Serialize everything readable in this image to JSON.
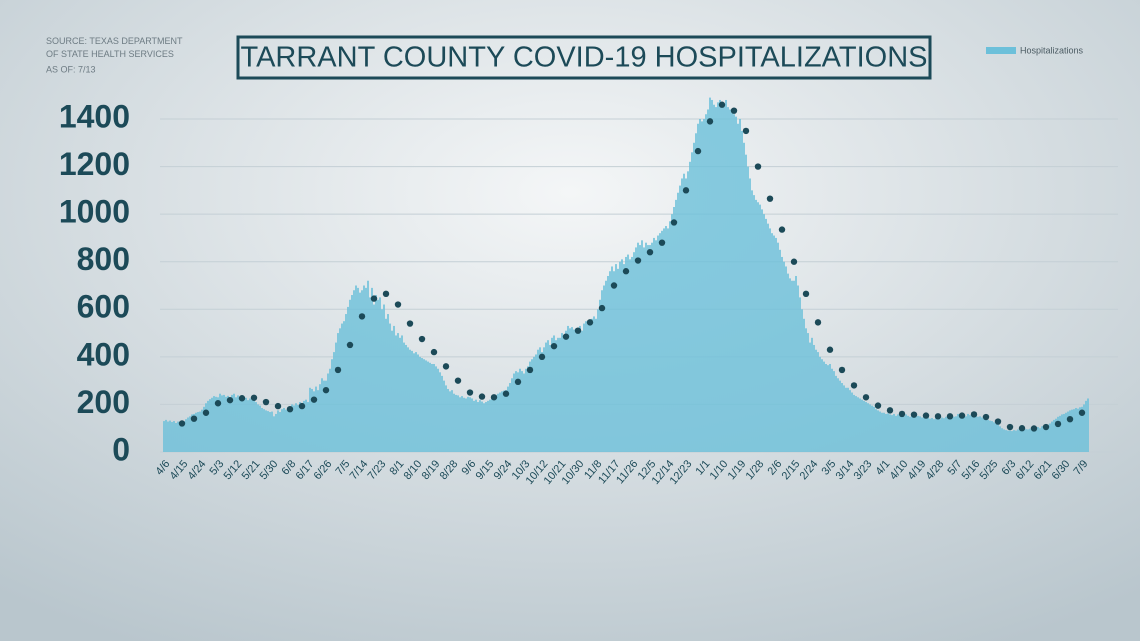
{
  "source": "SOURCE: TEXAS DEPARTMENT OF STATE HEALTH SERVICES",
  "as_of": "AS OF: 7/13",
  "chart_data": {
    "type": "bar",
    "title": "TARRANT COUNTY COVID-19 HOSPITALIZATIONS",
    "categories": [
      "4/6",
      null,
      null,
      null,
      null,
      null,
      null,
      null,
      null,
      "4/15",
      null,
      null,
      null,
      null,
      null,
      null,
      null,
      null,
      "4/24",
      null,
      null,
      null,
      null,
      null,
      null,
      null,
      null,
      "5/3",
      null,
      null,
      null,
      null,
      null,
      null,
      null,
      null,
      "5/12",
      null,
      null,
      null,
      null,
      null,
      null,
      null,
      null,
      "5/21",
      null,
      null,
      null,
      null,
      null,
      null,
      null,
      null,
      "5/30",
      null,
      null,
      null,
      null,
      null,
      null,
      null,
      null,
      "6/8",
      null,
      null,
      null,
      null,
      null,
      null,
      null,
      null,
      "6/17",
      null,
      null,
      null,
      null,
      null,
      null,
      null,
      null,
      "6/26",
      null,
      null,
      null,
      null,
      null,
      null,
      null,
      null,
      "7/5",
      null,
      null,
      null,
      null,
      null,
      null,
      null,
      null,
      "7/14",
      null,
      null,
      null,
      null,
      null,
      null,
      null,
      null,
      "7/23",
      null,
      null,
      null,
      null,
      null,
      null,
      null,
      null,
      "8/1",
      null,
      null,
      null,
      null,
      null,
      null,
      null,
      null,
      "8/10",
      null,
      null,
      null,
      null,
      null,
      null,
      null,
      null,
      "8/19",
      null,
      null,
      null,
      null,
      null,
      null,
      null,
      null,
      "8/28",
      null,
      null,
      null,
      null,
      null,
      null,
      null,
      null,
      "9/6",
      null,
      null,
      null,
      null,
      null,
      null,
      null,
      null,
      "9/15",
      null,
      null,
      null,
      null,
      null,
      null,
      null,
      null,
      "9/24",
      null,
      null,
      null,
      null,
      null,
      null,
      null,
      null,
      "10/3",
      null,
      null,
      null,
      null,
      null,
      null,
      null,
      null,
      "10/12",
      null,
      null,
      null,
      null,
      null,
      null,
      null,
      null,
      "10/21",
      null,
      null,
      null,
      null,
      null,
      null,
      null,
      null,
      "10/30",
      null,
      null,
      null,
      null,
      null,
      null,
      null,
      null,
      "11/8",
      null,
      null,
      null,
      null,
      null,
      null,
      null,
      null,
      "11/17",
      null,
      null,
      null,
      null,
      null,
      null,
      null,
      null,
      "11/26",
      null,
      null,
      null,
      null,
      null,
      null,
      null,
      null,
      "12/5",
      null,
      null,
      null,
      null,
      null,
      null,
      null,
      null,
      "12/14",
      null,
      null,
      null,
      null,
      null,
      null,
      null,
      null,
      "12/23",
      null,
      null,
      null,
      null,
      null,
      null,
      null,
      null,
      "1/1",
      null,
      null,
      null,
      null,
      null,
      null,
      null,
      null,
      "1/10",
      null,
      null,
      null,
      null,
      null,
      null,
      null,
      null,
      "1/19",
      null,
      null,
      null,
      null,
      null,
      null,
      null,
      null,
      "1/28",
      null,
      null,
      null,
      null,
      null,
      null,
      null,
      null,
      "2/6",
      null,
      null,
      null,
      null,
      null,
      null,
      null,
      null,
      "2/15",
      null,
      null,
      null,
      null,
      null,
      null,
      null,
      null,
      "2/24",
      null,
      null,
      null,
      null,
      null,
      null,
      null,
      null,
      "3/5",
      null,
      null,
      null,
      null,
      null,
      null,
      null,
      null,
      "3/14",
      null,
      null,
      null,
      null,
      null,
      null,
      null,
      null,
      "3/23",
      null,
      null,
      null,
      null,
      null,
      null,
      null,
      null,
      "4/1",
      null,
      null,
      null,
      null,
      null,
      null,
      null,
      null,
      "4/10",
      null,
      null,
      null,
      null,
      null,
      null,
      null,
      null,
      "4/19",
      null,
      null,
      null,
      null,
      null,
      null,
      null,
      null,
      "4/28",
      null,
      null,
      null,
      null,
      null,
      null,
      null,
      null,
      "5/7",
      null,
      null,
      null,
      null,
      null,
      null,
      null,
      null,
      "5/16",
      null,
      null,
      null,
      null,
      null,
      null,
      null,
      null,
      "5/25",
      null,
      null,
      null,
      null,
      null,
      null,
      null,
      null,
      "6/3",
      null,
      null,
      null,
      null,
      null,
      null,
      null,
      null,
      "6/12",
      null,
      null,
      null,
      null,
      null,
      null,
      null,
      null,
      "6/21",
      null,
      null,
      null,
      null,
      null,
      null,
      null,
      null,
      "6/30",
      null,
      null,
      null,
      null,
      null,
      null,
      null,
      null,
      "7/9",
      null,
      null,
      null
    ],
    "series": [
      {
        "name": "Hospitalizations",
        "color": "#6cc0da",
        "values": [
          130,
          135,
          128,
          132,
          126,
          130,
          122,
          128,
          124,
          125,
          130,
          138,
          145,
          150,
          158,
          160,
          165,
          168,
          170,
          178,
          190,
          205,
          215,
          222,
          228,
          235,
          232,
          230,
          245,
          238,
          240,
          232,
          236,
          228,
          240,
          245,
          230,
          238,
          226,
          232,
          222,
          228,
          218,
          225,
          220,
          220,
          210,
          200,
          195,
          185,
          180,
          175,
          172,
          168,
          170,
          150,
          160,
          175,
          168,
          180,
          185,
          178,
          188,
          190,
          200,
          196,
          205,
          198,
          210,
          205,
          215,
          220,
          210,
          270,
          265,
          255,
          275,
          260,
          285,
          310,
          300,
          300,
          330,
          350,
          390,
          420,
          460,
          500,
          520,
          540,
          550,
          580,
          610,
          640,
          660,
          680,
          700,
          690,
          670,
          680,
          700,
          690,
          720,
          650,
          690,
          620,
          660,
          640,
          650,
          600,
          620,
          560,
          580,
          540,
          510,
          530,
          490,
          500,
          480,
          490,
          460,
          450,
          440,
          430,
          425,
          415,
          420,
          410,
          400,
          395,
          390,
          385,
          380,
          375,
          370,
          370,
          360,
          350,
          335,
          320,
          300,
          280,
          265,
          255,
          260,
          245,
          240,
          238,
          230,
          235,
          228,
          225,
          232,
          230,
          225,
          215,
          220,
          210,
          218,
          212,
          205,
          210,
          215,
          220,
          228,
          235,
          240,
          245,
          250,
          255,
          258,
          260,
          275,
          290,
          310,
          330,
          340,
          335,
          350,
          340,
          330,
          350,
          360,
          380,
          390,
          400,
          410,
          430,
          440,
          420,
          440,
          460,
          470,
          450,
          480,
          490,
          470,
          480,
          480,
          500,
          490,
          510,
          530,
          520,
          525,
          515,
          520,
          520,
          530,
          510,
          540,
          550,
          545,
          555,
          560,
          570,
          560,
          600,
          640,
          680,
          700,
          720,
          740,
          760,
          780,
          760,
          790,
          770,
          800,
          810,
          790,
          820,
          830,
          810,
          820,
          840,
          860,
          880,
          870,
          890,
          860,
          880,
          870,
          870,
          880,
          900,
          890,
          910,
          920,
          930,
          940,
          950,
          940,
          970,
          1000,
          1030,
          1060,
          1090,
          1120,
          1150,
          1170,
          1150,
          1180,
          1220,
          1260,
          1300,
          1340,
          1380,
          1400,
          1390,
          1400,
          1420,
          1440,
          1490,
          1480,
          1460,
          1450,
          1470,
          1480,
          1470,
          1460,
          1480,
          1450,
          1440,
          1430,
          1420,
          1410,
          1380,
          1400,
          1350,
          1300,
          1250,
          1200,
          1150,
          1100,
          1080,
          1060,
          1050,
          1040,
          1020,
          1000,
          980,
          960,
          940,
          920,
          910,
          900,
          880,
          850,
          820,
          800,
          780,
          750,
          730,
          720,
          720,
          740,
          700,
          650,
          600,
          560,
          520,
          500,
          460,
          480,
          450,
          430,
          420,
          400,
          390,
          380,
          370,
          365,
          370,
          350,
          340,
          320,
          310,
          300,
          290,
          280,
          270,
          270,
          260,
          250,
          240,
          235,
          230,
          225,
          220,
          215,
          210,
          205,
          200,
          195,
          190,
          180,
          175,
          170,
          165,
          165,
          160,
          162,
          158,
          155,
          160,
          152,
          158,
          155,
          155,
          150,
          158,
          152,
          148,
          155,
          150,
          148,
          152,
          150,
          145,
          148,
          142,
          145,
          140,
          143,
          138,
          142,
          140,
          138,
          145,
          142,
          148,
          150,
          145,
          152,
          148,
          150,
          160,
          155,
          165,
          158,
          150,
          160,
          155,
          152,
          150,
          155,
          148,
          150,
          145,
          140,
          138,
          135,
          132,
          130,
          125,
          120,
          115,
          108,
          100,
          95,
          92,
          90,
          90,
          88,
          92,
          90,
          95,
          92,
          98,
          94,
          96,
          95,
          98,
          100,
          96,
          102,
          105,
          100,
          108,
          106,
          110,
          115,
          120,
          128,
          135,
          140,
          148,
          152,
          158,
          160,
          165,
          170,
          175,
          178,
          180,
          185,
          182,
          188,
          190,
          200,
          215,
          225
        ]
      }
    ],
    "trend": {
      "color": "#1c4a58",
      "x": [
        9,
        15,
        21,
        27,
        33,
        39,
        45,
        51,
        57,
        63,
        69,
        75,
        81,
        87,
        93,
        99,
        105,
        111,
        117,
        123,
        129,
        135,
        141,
        147,
        153,
        159,
        165,
        171,
        177,
        183,
        189,
        195,
        201,
        207,
        213,
        219,
        225,
        231,
        237,
        243,
        249,
        255,
        261,
        267,
        273,
        279,
        285,
        291,
        297,
        303,
        309,
        315,
        321,
        327,
        333,
        339,
        345,
        351,
        357,
        363,
        369,
        375,
        381,
        387,
        393,
        399,
        405,
        411,
        417,
        423,
        429,
        435,
        441,
        447,
        453,
        459
      ],
      "values": [
        120,
        140,
        165,
        205,
        218,
        226,
        228,
        210,
        193,
        180,
        193,
        220,
        260,
        345,
        450,
        570,
        645,
        665,
        620,
        540,
        475,
        420,
        360,
        300,
        250,
        233,
        230,
        245,
        295,
        345,
        400,
        445,
        485,
        510,
        545,
        605,
        700,
        760,
        805,
        840,
        880,
        965,
        1100,
        1265,
        1390,
        1460,
        1435,
        1350,
        1200,
        1065,
        935,
        800,
        665,
        545,
        430,
        345,
        280,
        230,
        195,
        175,
        160,
        157,
        153,
        150,
        150,
        153,
        158,
        147,
        128,
        105,
        100,
        99,
        105,
        118,
        138,
        165
      ]
    },
    "ylim": [
      0,
      1400
    ],
    "yticks": [
      0,
      200,
      400,
      600,
      800,
      1000,
      1200,
      1400
    ],
    "grid": true,
    "legend": "top-right"
  }
}
